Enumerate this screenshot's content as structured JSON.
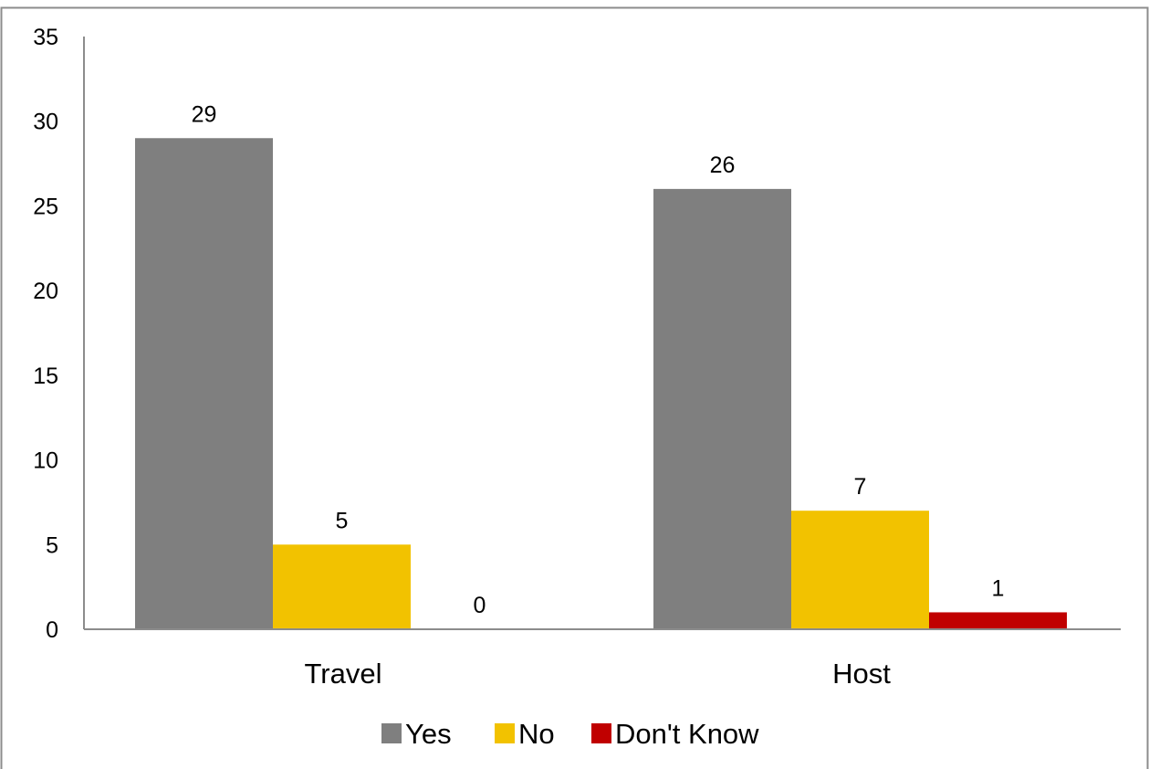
{
  "chart_data": {
    "type": "bar",
    "title": "",
    "xlabel": "",
    "ylabel": "",
    "categories": [
      "Travel",
      "Host"
    ],
    "series": [
      {
        "name": "Yes",
        "values": [
          29,
          26
        ],
        "color": "#7f7f7f"
      },
      {
        "name": "No",
        "values": [
          5,
          7
        ],
        "color": "#f2c200"
      },
      {
        "name": "Don't Know",
        "values": [
          0,
          1
        ],
        "color": "#c00000"
      }
    ],
    "ylim": [
      0,
      35
    ],
    "yticks": [
      0,
      5,
      10,
      15,
      20,
      25,
      30,
      35
    ],
    "grid": false,
    "data_labels": true,
    "legend_position": "bottom",
    "colors": {
      "border": "#8c8c8c",
      "axis": "#8c8c8c",
      "text": "#000000"
    }
  }
}
